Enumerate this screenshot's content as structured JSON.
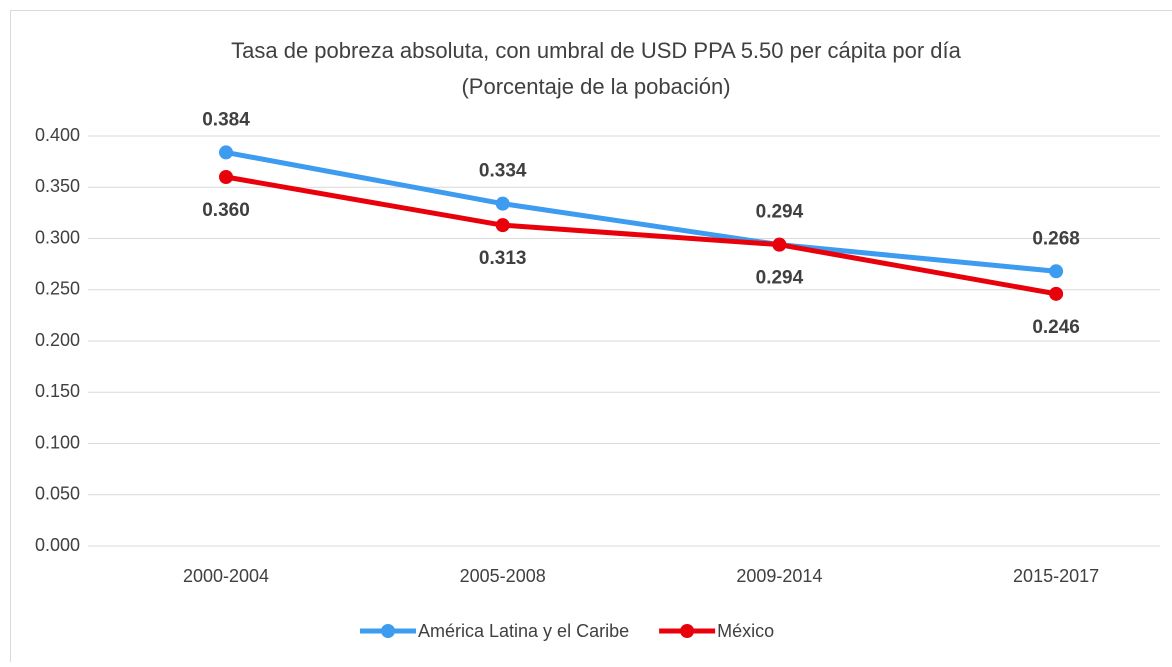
{
  "chart_data": {
    "type": "line",
    "title": "Tasa de pobreza absoluta, con umbral de USD PPA 5.50 per cápita por día",
    "subtitle": "(Porcentaje de la pobación)",
    "categories": [
      "2000-2004",
      "2005-2008",
      "2009-2014",
      "2015-2017"
    ],
    "series": [
      {
        "name": "América Latina y el Caribe",
        "color": "#3d9bf0",
        "values": [
          0.384,
          0.334,
          0.294,
          0.268
        ],
        "value_labels": [
          "0.384",
          "0.334",
          "0.294",
          "0.268"
        ]
      },
      {
        "name": "México",
        "color": "#e8000b",
        "values": [
          0.36,
          0.313,
          0.294,
          0.246
        ],
        "value_labels": [
          "0.360",
          "0.313",
          "0.294",
          "0.246"
        ]
      }
    ],
    "ylim": [
      0,
      0.4
    ],
    "yticks": [
      {
        "value": 0,
        "label": "0.000"
      },
      {
        "value": 0.05,
        "label": "0.050"
      },
      {
        "value": 0.1,
        "label": "0.100"
      },
      {
        "value": 0.15,
        "label": "0.150"
      },
      {
        "value": 0.2,
        "label": "0.200"
      },
      {
        "value": 0.25,
        "label": "0.250"
      },
      {
        "value": 0.3,
        "label": "0.300"
      },
      {
        "value": 0.35,
        "label": "0.350"
      },
      {
        "value": 0.4,
        "label": "0.400"
      }
    ],
    "grid": true,
    "legend": "bottom"
  }
}
